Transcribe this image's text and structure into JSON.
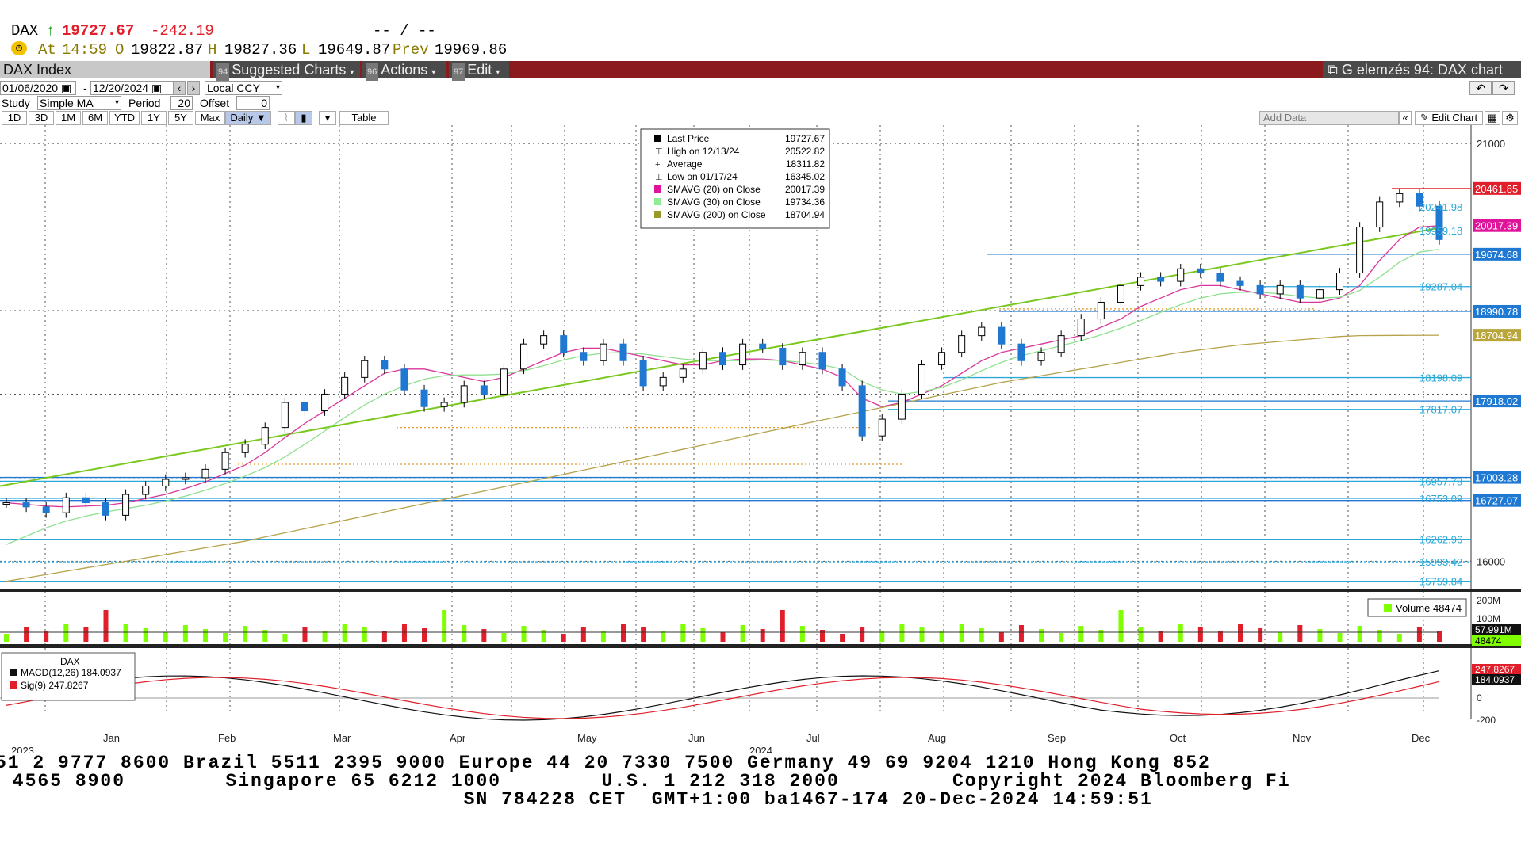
{
  "header": {
    "symbol": "DAX",
    "arrow": "↑",
    "last": "19727.67",
    "change": "-242.19",
    "placeholder": "-- / --",
    "at_label": "At",
    "time": "14:59",
    "open_label": "O",
    "open": "19822.87",
    "high_label": "H",
    "high": "19827.36",
    "low_label": "L",
    "low": "19649.87",
    "prev_label": "Prev",
    "prev": "19969.86"
  },
  "menubar": {
    "index_name": "DAX Index",
    "suggested_badge": "94",
    "suggested": "Suggested Charts",
    "actions_badge": "96",
    "actions": "Actions",
    "edit_badge": "97",
    "edit": "Edit",
    "right_title": "G elemzés 94: DAX chart"
  },
  "controls": {
    "date_from": "01/06/2020",
    "date_to": "12/20/2024",
    "currency": "Local CCY",
    "study_label": "Study",
    "study_value": "Simple MA",
    "period_label": "Period",
    "period_value": "20",
    "offset_label": "Offset",
    "offset_value": "0",
    "timeframes": [
      "1D",
      "3D",
      "1M",
      "6M",
      "YTD",
      "1Y",
      "5Y",
      "Max"
    ],
    "frequency": "Daily ▼",
    "table_label": "Table",
    "add_data": "Add Data",
    "edit_chart": "Edit Chart"
  },
  "legend": {
    "rows": [
      {
        "label": "Last Price",
        "value": "19727.67",
        "color": "#000000",
        "marker": "square"
      },
      {
        "label": "High on 12/13/24",
        "value": "20522.82",
        "color": "#000000",
        "marker": "high"
      },
      {
        "label": "Average",
        "value": "18311.82",
        "color": "#000000",
        "marker": "avg"
      },
      {
        "label": "Low on 01/17/24",
        "value": "16345.02",
        "color": "#000000",
        "marker": "low"
      },
      {
        "label": "SMAVG (20)  on Close",
        "value": "20017.39",
        "color": "#e0149a",
        "marker": "square"
      },
      {
        "label": "SMAVG (30)  on Close",
        "value": "19734.36",
        "color": "#90ee90",
        "marker": "square"
      },
      {
        "label": "SMAVG (200)  on Close",
        "value": "18704.94",
        "color": "#9a9a2a",
        "marker": "square"
      }
    ]
  },
  "chart_data": {
    "type": "line",
    "title": "DAX Index",
    "ylim": [
      15700,
      21200
    ],
    "y_ticks": [
      "21000",
      "16000"
    ],
    "x_labels": [
      "2023",
      "Jan",
      "Feb",
      "Mar",
      "Apr",
      "May",
      "Jun",
      "2024",
      "Jul",
      "Aug",
      "Sep",
      "Oct",
      "Nov",
      "Dec"
    ],
    "series": [
      {
        "name": "Last Price",
        "values": [
          16700,
          16650,
          16580,
          16760,
          16700,
          16550,
          16800,
          16900,
          16980,
          17000,
          17100,
          17300,
          17400,
          17600,
          17900,
          17800,
          18000,
          18200,
          18400,
          18300,
          18050,
          17850,
          17900,
          18100,
          18000,
          18300,
          18600,
          18700,
          18500,
          18400,
          18600,
          18400,
          18100,
          18200,
          18300,
          18500,
          18350,
          18600,
          18550,
          18350,
          18500,
          18300,
          18100,
          17500,
          17700,
          18000,
          18350,
          18500,
          18700,
          18800,
          18600,
          18400,
          18500,
          18700,
          18900,
          19100,
          19300,
          19400,
          19350,
          19500,
          19450,
          19350,
          19300,
          19200,
          19300,
          19150,
          19250,
          19450,
          20000,
          20300,
          20400,
          20250,
          19850
        ]
      },
      {
        "name": "SMAVG (20)",
        "values": [
          16700,
          16680,
          16660,
          16650,
          16660,
          16670,
          16700,
          16750,
          16800,
          16870,
          16950,
          17050,
          17150,
          17300,
          17480,
          17650,
          17800,
          17950,
          18100,
          18250,
          18300,
          18300,
          18250,
          18200,
          18150,
          18200,
          18300,
          18400,
          18500,
          18550,
          18550,
          18500,
          18450,
          18400,
          18350,
          18350,
          18400,
          18420,
          18420,
          18400,
          18350,
          18300,
          18200,
          17950,
          17850,
          17900,
          18000,
          18100,
          18250,
          18400,
          18500,
          18550,
          18600,
          18650,
          18700,
          18800,
          18900,
          19050,
          19150,
          19250,
          19300,
          19300,
          19250,
          19200,
          19150,
          19100,
          19100,
          19150,
          19300,
          19600,
          19850,
          20000,
          20017
        ]
      },
      {
        "name": "SMAVG (30)",
        "values": [
          16200,
          16300,
          16400,
          16480,
          16540,
          16590,
          16630,
          16670,
          16720,
          16780,
          16850,
          16930,
          17020,
          17120,
          17250,
          17400,
          17560,
          17720,
          17870,
          18000,
          18100,
          18180,
          18220,
          18230,
          18230,
          18240,
          18280,
          18340,
          18410,
          18460,
          18490,
          18500,
          18480,
          18450,
          18420,
          18400,
          18400,
          18400,
          18410,
          18400,
          18380,
          18350,
          18300,
          18150,
          18050,
          18000,
          18030,
          18080,
          18170,
          18280,
          18380,
          18460,
          18520,
          18580,
          18640,
          18710,
          18790,
          18880,
          18980,
          19070,
          19150,
          19200,
          19220,
          19220,
          19200,
          19170,
          19150,
          19160,
          19240,
          19400,
          19580,
          19700,
          19734
        ]
      },
      {
        "name": "SMAVG (200)",
        "values": [
          15760,
          15800,
          15840,
          15880,
          15920,
          15960,
          16000,
          16040,
          16080,
          16120,
          16160,
          16200,
          16240,
          16290,
          16340,
          16390,
          16440,
          16490,
          16540,
          16590,
          16640,
          16690,
          16740,
          16790,
          16840,
          16890,
          16940,
          16990,
          17040,
          17090,
          17140,
          17190,
          17240,
          17290,
          17340,
          17390,
          17440,
          17490,
          17540,
          17590,
          17640,
          17690,
          17740,
          17790,
          17840,
          17890,
          17940,
          17990,
          18040,
          18090,
          18140,
          18180,
          18220,
          18260,
          18300,
          18340,
          18380,
          18420,
          18460,
          18500,
          18530,
          18560,
          18590,
          18610,
          18630,
          18650,
          18670,
          18690,
          18700,
          18702,
          18703,
          18704,
          18704.94
        ]
      }
    ],
    "price_labels": [
      {
        "value": "20461.85",
        "bg": "#e01f2a"
      },
      {
        "value": "20241.98",
        "bg": ""
      },
      {
        "value": "19959.18",
        "bg": ""
      },
      {
        "value": "20017.39",
        "bg": "#e0149a"
      },
      {
        "value": "19674.68",
        "bg": "#1f78d1"
      },
      {
        "value": "19287.04",
        "bg": ""
      },
      {
        "value": "18990.78",
        "bg": "#1f78d1"
      },
      {
        "value": "18704.94",
        "bg": "#b8a63a"
      },
      {
        "value": "18198.09",
        "bg": ""
      },
      {
        "value": "17918.02",
        "bg": "#1f78d1"
      },
      {
        "value": "17817.07",
        "bg": ""
      },
      {
        "value": "17003.28",
        "bg": "#1f78d1"
      },
      {
        "value": "16957.78",
        "bg": ""
      },
      {
        "value": "16753.09",
        "bg": ""
      },
      {
        "value": "16727.07",
        "bg": "#1f78d1"
      },
      {
        "value": "16262.96",
        "bg": ""
      },
      {
        "value": "15993.42",
        "bg": ""
      },
      {
        "value": "15759.84",
        "bg": ""
      }
    ],
    "volume": {
      "label": "Volume",
      "value": "48474",
      "avg_label": "57.991M",
      "last_label": "48474",
      "y_ticks": [
        "200M",
        "100M"
      ]
    },
    "macd": {
      "title": "DAX",
      "macd_label": "MACD(12,26)",
      "macd_value": "184.0937",
      "sig_label": "Sig(9)",
      "sig_value": "247.8267",
      "y_ticks": [
        "0",
        "-200"
      ],
      "tag1": "247.8267",
      "tag2": "184.0937"
    }
  },
  "footer": {
    "line1": "51 2 9777 8600 Brazil 5511 2395 9000 Europe 44 20 7330 7500 Germany 49 69 9204 1210 Hong Kong 852",
    "line2": " 4565 8900        Singapore 65 6212 1000        U.S. 1 212 318 2000         Copyright 2024 Bloomberg Fi",
    "line3": "                                     SN 784228 CET  GMT+1:00 ba1467-174 20-Dec-2024 14:59:51"
  },
  "colors": {
    "brand_bar": "#8b1a1f",
    "up": "#000000",
    "down": "#1f78d1",
    "trend": "#7ac81e",
    "vol_up": "#7fff00",
    "vol_down": "#e01f2a"
  }
}
